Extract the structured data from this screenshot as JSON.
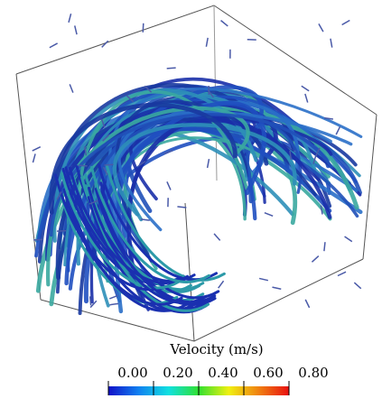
{
  "chart_data": {
    "type": "colorbar",
    "title": "Velocity (m/s)",
    "xlim": [
      0,
      0.8
    ],
    "xticks": [
      {
        "value": 0,
        "label": "0.00"
      },
      {
        "value": 0.2,
        "label": "0.20"
      },
      {
        "value": 0.4,
        "label": "0.40"
      },
      {
        "value": 0.6,
        "label": "0.60"
      },
      {
        "value": 0.8,
        "label": "0.80"
      }
    ],
    "colors": [
      "#1010c8",
      "#1080f0",
      "#10e0e0",
      "#30e030",
      "#f0f010",
      "#f08010",
      "#e81010"
    ]
  }
}
